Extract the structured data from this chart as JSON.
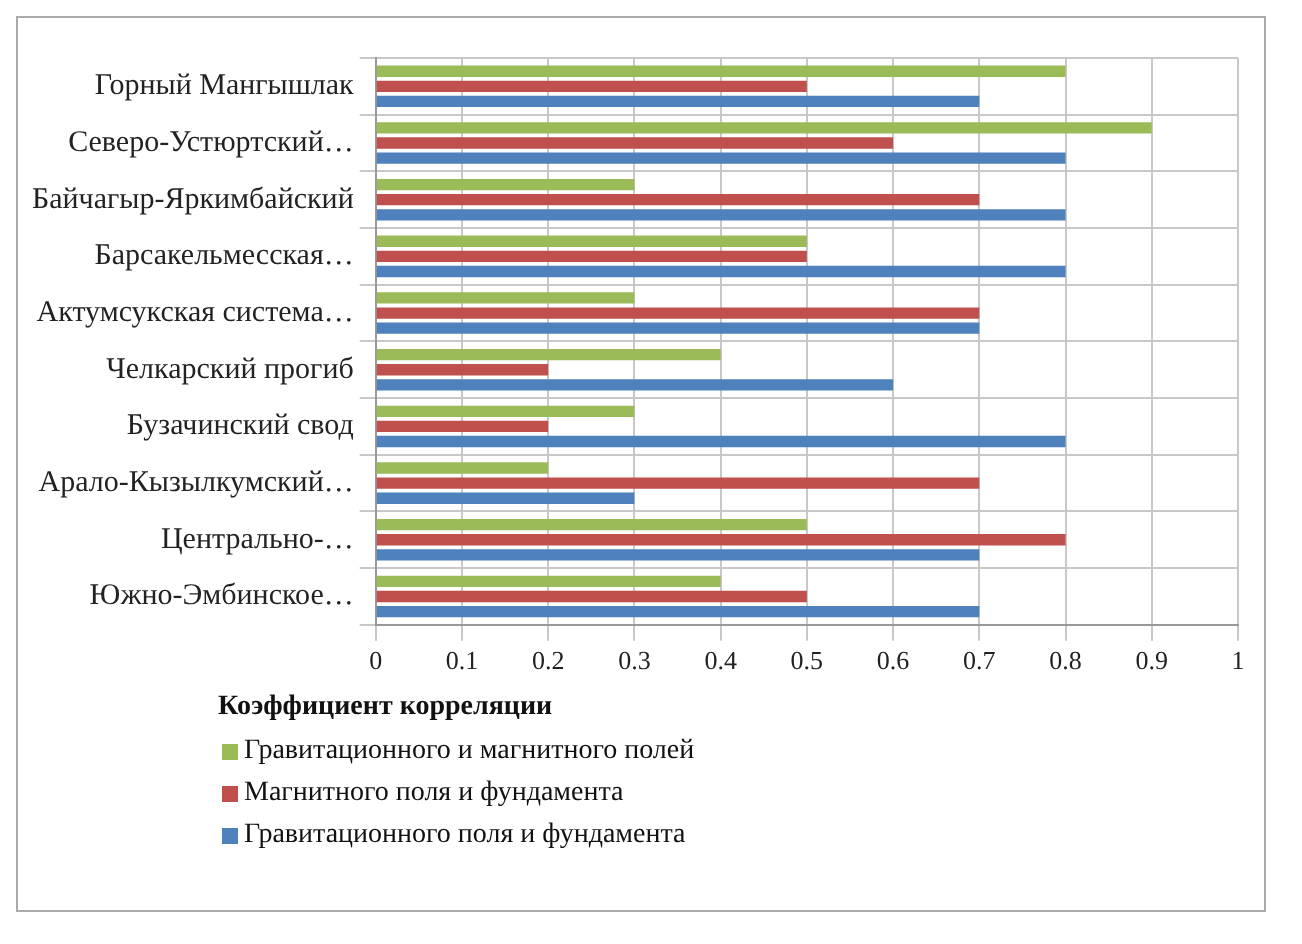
{
  "chart_data": {
    "type": "bar",
    "orientation": "horizontal",
    "categories": [
      "Горный Мангышлак",
      "Северо-Устюртский…",
      "Байчагыр-Яркимбайский",
      "Барсакельмесская…",
      "Актумсукская система…",
      "Челкарский прогиб",
      "Бузачинский свод",
      "Арало-Кызылкумский…",
      "Центрально-…",
      "Южно-Эмбинское…"
    ],
    "series": [
      {
        "name": "Гравитационного и магнитного полей",
        "color": "#9bbb59",
        "values": [
          0.8,
          0.9,
          0.3,
          0.5,
          0.3,
          0.4,
          0.3,
          0.2,
          0.5,
          0.4
        ]
      },
      {
        "name": "Магнитного поля и фундамента",
        "color": "#c0504d",
        "values": [
          0.5,
          0.6,
          0.7,
          0.5,
          0.7,
          0.2,
          0.2,
          0.7,
          0.8,
          0.5
        ]
      },
      {
        "name": "Гравитационного поля и фундамента",
        "color": "#4f81bd",
        "values": [
          0.7,
          0.8,
          0.8,
          0.8,
          0.7,
          0.6,
          0.8,
          0.3,
          0.7,
          0.7
        ]
      }
    ],
    "xlim": [
      0,
      1
    ],
    "xticks": [
      0,
      0.1,
      0.2,
      0.3,
      0.4,
      0.5,
      0.6,
      0.7,
      0.8,
      0.9,
      1
    ],
    "legend_title": "Коэффициент корреляции",
    "legend": "bottom",
    "grid": true
  }
}
